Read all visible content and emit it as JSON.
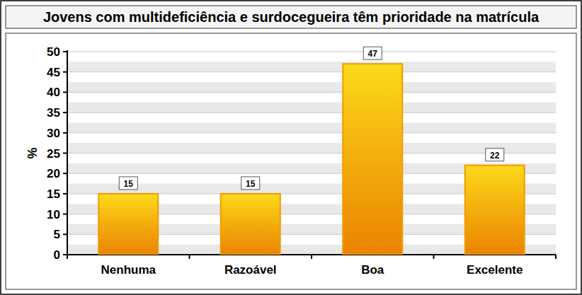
{
  "chart_data": {
    "type": "bar",
    "title": "Jovens com multideficiência e surdocegueira têm prioridade na matrícula",
    "y_label": "%",
    "categories": [
      "Nenhuma",
      "Razoável",
      "Boa",
      "Excelente"
    ],
    "values": [
      15,
      15,
      47,
      22
    ],
    "color": "#f29a00",
    "ylim": [
      0,
      50
    ],
    "yticks": [
      0,
      5,
      10,
      15,
      20,
      25,
      30,
      35,
      40,
      45,
      50
    ],
    "grid": true,
    "data_labels": true
  }
}
